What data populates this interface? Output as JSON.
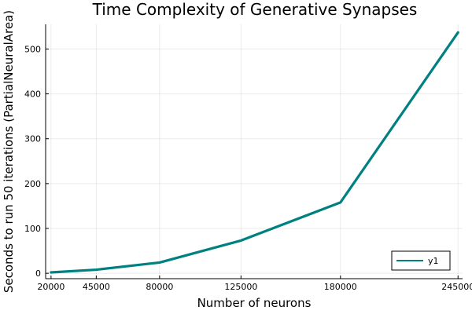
{
  "chart_data": {
    "type": "line",
    "title": "Time Complexity of Generative Synapses",
    "xlabel": "Number of neurons",
    "ylabel": "Seconds to run 50 iterations (PartialNeuralArea)",
    "x": [
      20000,
      45000,
      80000,
      125000,
      180000,
      245000
    ],
    "x_tick_labels": [
      "20000",
      "45000",
      "80000",
      "125000",
      "180000",
      "245000"
    ],
    "y_ticks": [
      0,
      100,
      200,
      300,
      400,
      500
    ],
    "y_tick_labels": [
      "0",
      "100",
      "200",
      "300",
      "400",
      "500"
    ],
    "xlim": [
      17000,
      247500
    ],
    "ylim": [
      -12,
      555
    ],
    "grid": true,
    "legend_position": "bottom-right",
    "series": [
      {
        "name": "y1",
        "color": "#008080",
        "values": [
          2,
          8,
          24,
          73,
          158,
          537
        ]
      }
    ]
  }
}
